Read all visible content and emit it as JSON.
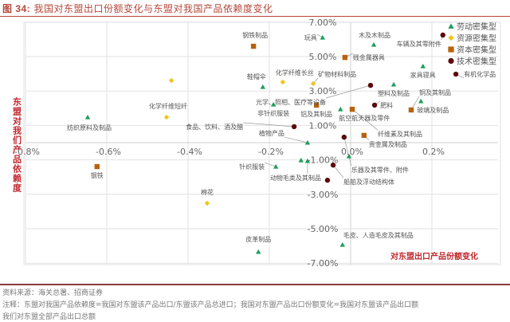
{
  "header": {
    "figure_no": "图 34:",
    "title": "我国对东盟出口份额变化与东盟对我国产品依赖度变化"
  },
  "footer": {
    "source": "资料来源：海关总署、招商证券",
    "note_line1": "注释：东盟对我国产品依赖度=我国对东盟该产品出口/东盟该产品总进口；我国对东盟产品出口份额变化=我国对东盟该产品出口额",
    "note_line2": "我们对东盟全部产品出口总额"
  },
  "chart_data": {
    "type": "scatter",
    "title": "我国对东盟出口份额变化与东盟对我国产品依赖度变化",
    "xlabel": "对东盟出口产品份额变化",
    "ylabel": "东盟对我们产品依赖度",
    "xlim": [
      -0.8,
      0.363
    ],
    "ylim": [
      -7,
      7
    ],
    "x_ticks": [
      -0.8,
      -0.6,
      -0.4,
      -0.2,
      0.0,
      0.2
    ],
    "x_tick_labels": [
      "-0.8%",
      "-0.6%",
      "-0.4%",
      "-0.2%",
      "0.0%",
      "0.2%"
    ],
    "y_ticks": [
      7,
      5,
      3,
      1,
      -1,
      -3,
      -5,
      -7
    ],
    "y_tick_labels": [
      "7.00%",
      "5.00%",
      "3.00%",
      "1.00%",
      "-1.00%",
      "-3.00%",
      "-5.00%",
      "-7.00%"
    ],
    "grid": true,
    "legend_position": "top-right",
    "series": [
      {
        "name": "劳动密集型",
        "marker": "triangle",
        "color": "#1e9e5a",
        "points": [
          {
            "x": -0.069,
            "y": 6.11,
            "label": "玩具"
          },
          {
            "x": 0.057,
            "y": 5.69,
            "label": "木及木制品"
          },
          {
            "x": -0.216,
            "y": 3.24,
            "label": "鞋帽伞"
          },
          {
            "x": -0.19,
            "y": 2.22,
            "label": "非针织服装"
          },
          {
            "x": -0.025,
            "y": 1.94,
            "label": "航空航天器及零件"
          },
          {
            "x": 0.178,
            "y": 4.44,
            "label": "家具寝具"
          },
          {
            "x": 0.106,
            "y": 3.38,
            "label": "塑料及制品"
          },
          {
            "x": 0.173,
            "y": 2.41,
            "label": "玻璃及制品"
          },
          {
            "x": -0.647,
            "y": 1.48,
            "label": "纺织原料及制品"
          },
          {
            "x": -0.106,
            "y": 0.0,
            "label": "植物产品"
          },
          {
            "x": -0.106,
            "y": -1.06,
            "label": "动物毛类及其制品"
          },
          {
            "x": -0.122,
            "y": -1.02,
            "label": ""
          },
          {
            "x": -0.184,
            "y": -1.39,
            "label": "针织服装"
          },
          {
            "x": -0.004,
            "y": -0.79,
            "label": ""
          },
          {
            "x": -0.227,
            "y": -6.34,
            "label": "皮革制品"
          },
          {
            "x": -0.02,
            "y": -5.93,
            "label": "毛皮、人造毛皮及其制品"
          }
        ]
      },
      {
        "name": "资源密集型",
        "marker": "diamond",
        "color": "#f2c318",
        "points": [
          {
            "x": -0.167,
            "y": 3.52,
            "label": "化学纤维长丝"
          },
          {
            "x": -0.092,
            "y": 3.43,
            "label": "矿物材料制品"
          },
          {
            "x": -0.453,
            "y": 1.48,
            "label": "化学纤维短纤"
          },
          {
            "x": -0.441,
            "y": 3.61,
            "label": ""
          },
          {
            "x": -0.353,
            "y": -3.52,
            "label": "棉花"
          }
        ]
      },
      {
        "name": "资本密集型",
        "marker": "square",
        "color": "#b8620e",
        "points": [
          {
            "x": -0.239,
            "y": 5.6,
            "label": "钢铁制品"
          },
          {
            "x": -0.014,
            "y": 4.95,
            "label": "贱金属器具"
          },
          {
            "x": -0.084,
            "y": 2.18,
            "label": "铝及其制品"
          },
          {
            "x": 0.004,
            "y": 1.94,
            "label": "纤维素及其制品"
          },
          {
            "x": 0.149,
            "y": 1.9,
            "label": "铜及其制品"
          },
          {
            "x": 0.033,
            "y": 0.42,
            "label": "贵金属及制品"
          },
          {
            "x": -0.624,
            "y": -1.39,
            "label": "钢铁"
          }
        ]
      },
      {
        "name": "技术密集型",
        "marker": "circle",
        "color": "#5c0a0a",
        "points": [
          {
            "x": 0.227,
            "y": 6.25,
            "label": "车辆及其零附件"
          },
          {
            "x": 0.259,
            "y": 3.98,
            "label": "有机化学品"
          },
          {
            "x": 0.049,
            "y": 3.33,
            "label": "光学、照相、医疗等设备"
          },
          {
            "x": 0.059,
            "y": 2.18,
            "label": "肥料"
          },
          {
            "x": -0.139,
            "y": 0.93,
            "label": "食品、饮料、酒及醋"
          },
          {
            "x": -0.016,
            "y": 0.32,
            "label": "乐器及其零件、附件"
          },
          {
            "x": -0.043,
            "y": -1.3,
            "label": "船舶及浮动结构体"
          },
          {
            "x": -0.057,
            "y": -2.18,
            "label": ""
          }
        ]
      }
    ]
  }
}
